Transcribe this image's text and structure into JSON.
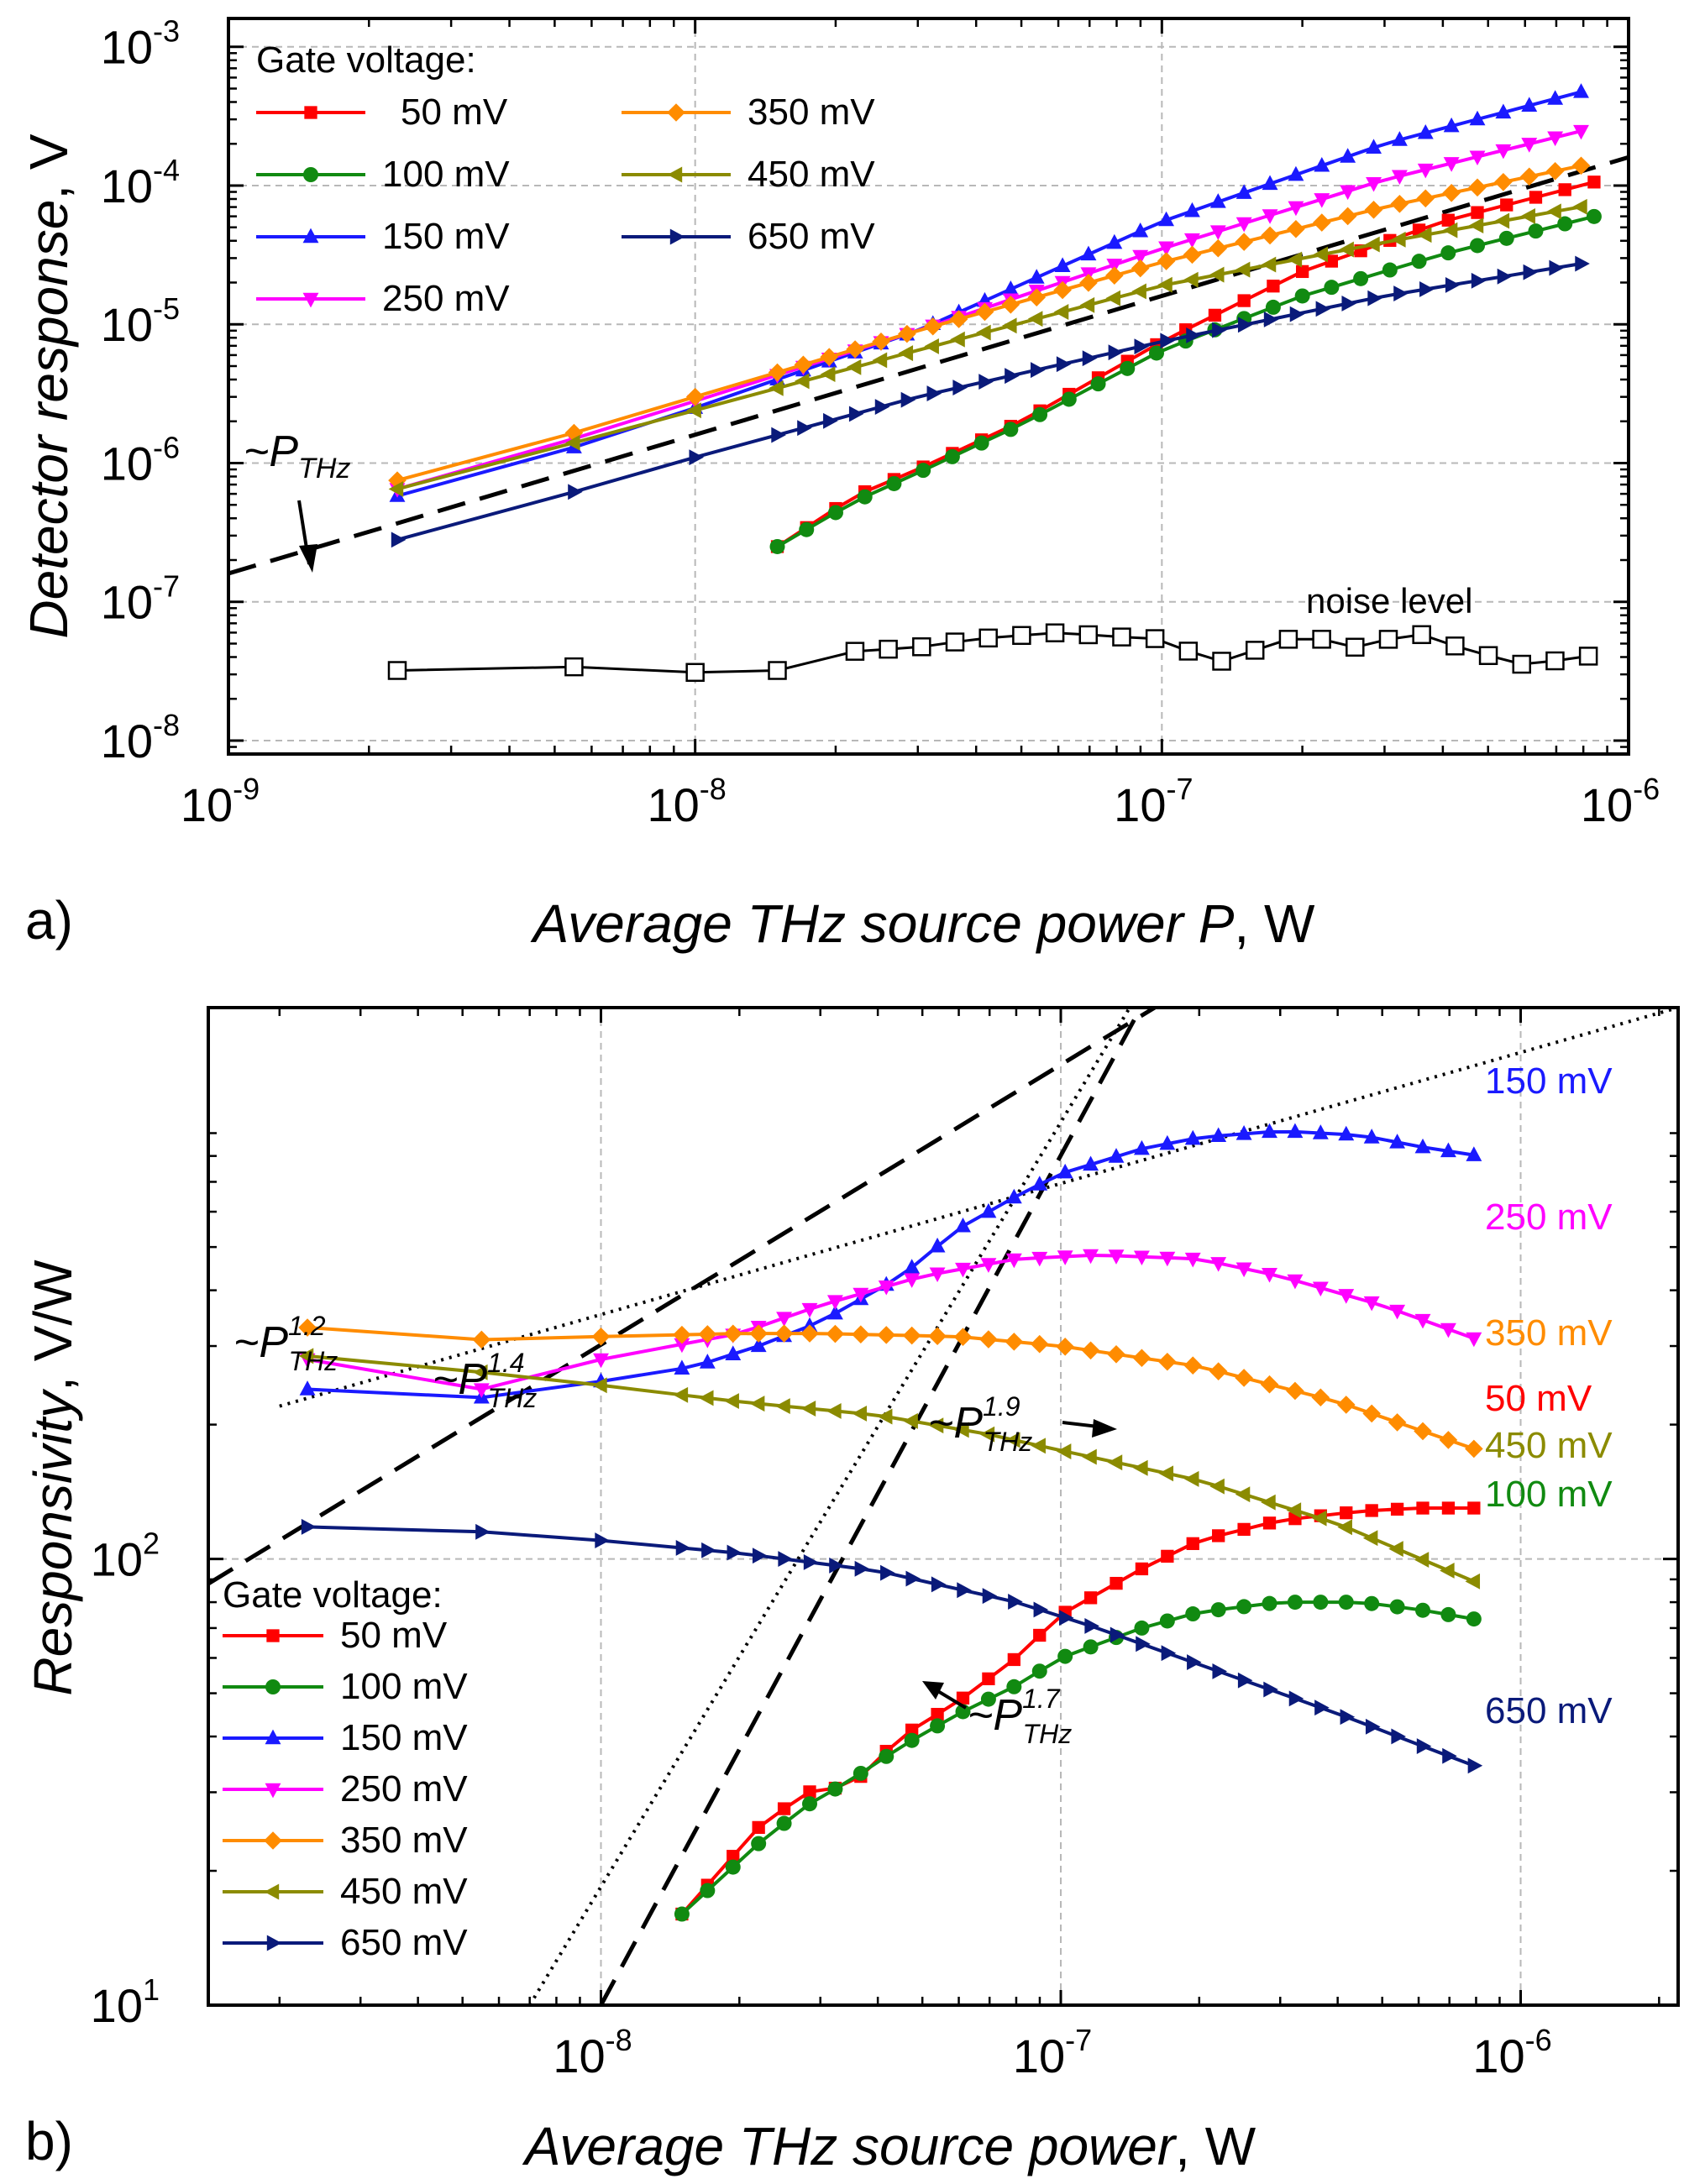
{
  "colors": {
    "50 mV": "#ff0000",
    "100 mV": "#118a11",
    "150 mV": "#1a1aff",
    "250 mV": "#ff00ff",
    "350 mV": "#ff8c00",
    "450 mV": "#8b8b00",
    "650 mV": "#0a1a7a",
    "noise": "#000000"
  },
  "chart_data": [
    {
      "panel_label": "a)",
      "type": "line",
      "xscale": "log",
      "yscale": "log",
      "xlim": [
        1e-09,
        1e-06
      ],
      "ylim": [
        8e-09,
        0.0016
      ],
      "xlabel": "Average THz source power P",
      "xunit": ", W",
      "ylabel": "Detector response",
      "yunit": ", V",
      "x_ticks": [
        {
          "base": "10",
          "exp": "-9",
          "value": 1e-09
        },
        {
          "base": "10",
          "exp": "-8",
          "value": 1e-08
        },
        {
          "base": "10",
          "exp": "-7",
          "value": 1e-07
        },
        {
          "base": "10",
          "exp": "-6",
          "value": 1e-06
        }
      ],
      "y_ticks": [
        {
          "base": "10",
          "exp": "-8",
          "value": 1e-08
        },
        {
          "base": "10",
          "exp": "-7",
          "value": 1e-07
        },
        {
          "base": "10",
          "exp": "-6",
          "value": 1e-06
        },
        {
          "base": "10",
          "exp": "-5",
          "value": 1e-05
        },
        {
          "base": "10",
          "exp": "-4",
          "value": 0.0001
        },
        {
          "base": "10",
          "exp": "-3",
          "value": 0.001
        }
      ],
      "legend": {
        "title": "Gate voltage:",
        "position": "top-left",
        "columns": 2,
        "entries": [
          "50 mV",
          "100 mV",
          "150 mV",
          "250 mV",
          "350 mV",
          "450 mV",
          "650 mV"
        ]
      },
      "series": [
        {
          "name": "50 mV",
          "marker": "square",
          "x_range": [
            1.5e-08,
            8.8e-07
          ],
          "anchors": [
            [
              1.5e-08,
              2.5e-07
            ],
            [
              2.2e-08,
              5.8e-07
            ],
            [
              3e-08,
              9e-07
            ],
            [
              5e-08,
              2e-06
            ],
            [
              1e-07,
              7.5e-06
            ],
            [
              2e-07,
              2.4e-05
            ],
            [
              4e-07,
              5.5e-05
            ],
            [
              8.8e-07,
              0.00011
            ]
          ]
        },
        {
          "name": "100 mV",
          "marker": "circle",
          "x_range": [
            1.5e-08,
            8.8e-07
          ],
          "anchors": [
            [
              1.5e-08,
              2.5e-07
            ],
            [
              2.2e-08,
              5.3e-07
            ],
            [
              3e-08,
              8.5e-07
            ],
            [
              5e-08,
              1.9e-06
            ],
            [
              1e-07,
              6.5e-06
            ],
            [
              2e-07,
              1.6e-05
            ],
            [
              4e-07,
              3.2e-05
            ],
            [
              8.8e-07,
              6.2e-05
            ]
          ]
        },
        {
          "name": "150 mV",
          "marker": "triangle-up",
          "x_range": [
            2.3e-09,
            8.8e-07
          ],
          "anchors": [
            [
              2.3e-09,
              5.8e-07
            ],
            [
              5.5e-09,
              1.3e-06
            ],
            [
              1e-08,
              2.5e-06
            ],
            [
              3e-08,
              9e-06
            ],
            [
              1e-07,
              5.5e-05
            ],
            [
              3e-07,
              0.0002
            ],
            [
              8.8e-07,
              0.00052
            ]
          ]
        },
        {
          "name": "250 mV",
          "marker": "triangle-down",
          "x_range": [
            2.3e-09,
            8.8e-07
          ],
          "anchors": [
            [
              2.3e-09,
              6.5e-07
            ],
            [
              5.5e-09,
              1.5e-06
            ],
            [
              1e-08,
              2.8e-06
            ],
            [
              3e-08,
              9e-06
            ],
            [
              1e-07,
              3.5e-05
            ],
            [
              3e-07,
              0.00011
            ],
            [
              8.8e-07,
              0.00027
            ]
          ]
        },
        {
          "name": "350 mV",
          "marker": "diamond",
          "x_range": [
            2.3e-09,
            8.8e-07
          ],
          "anchors": [
            [
              2.3e-09,
              7.5e-07
            ],
            [
              5.5e-09,
              1.65e-06
            ],
            [
              1e-08,
              3e-06
            ],
            [
              3e-08,
              9e-06
            ],
            [
              1e-07,
              2.8e-05
            ],
            [
              3e-07,
              7e-05
            ],
            [
              8.8e-07,
              0.00015
            ]
          ]
        },
        {
          "name": "450 mV",
          "marker": "triangle-left",
          "x_range": [
            2.3e-09,
            8.8e-07
          ],
          "anchors": [
            [
              2.3e-09,
              6.5e-07
            ],
            [
              5.5e-09,
              1.4e-06
            ],
            [
              1e-08,
              2.4e-06
            ],
            [
              3e-08,
              6.5e-06
            ],
            [
              1e-07,
              1.9e-05
            ],
            [
              3e-07,
              3.9e-05
            ],
            [
              8.8e-07,
              7.5e-05
            ]
          ]
        },
        {
          "name": "650 mV",
          "marker": "triangle-right",
          "x_range": [
            2.3e-09,
            8.8e-07
          ],
          "anchors": [
            [
              2.3e-09,
              2.8e-07
            ],
            [
              5.5e-09,
              6.2e-07
            ],
            [
              1e-08,
              1.1e-06
            ],
            [
              3e-08,
              3e-06
            ],
            [
              1e-07,
              7.5e-06
            ],
            [
              3e-07,
              1.6e-05
            ],
            [
              8.8e-07,
              2.9e-05
            ]
          ]
        },
        {
          "name": "noise",
          "marker": "open-square",
          "x_range": [
            2.3e-09,
            8.8e-07
          ],
          "anchors": [
            [
              2.3e-09,
              3.2e-08
            ],
            [
              5.5e-09,
              3.4e-08
            ],
            [
              1e-08,
              3.1e-08
            ],
            [
              1.5e-08,
              3.2e-08
            ],
            [
              2.2e-08,
              4.4e-08
            ],
            [
              3e-08,
              4.7e-08
            ],
            [
              4e-08,
              5.4e-08
            ],
            [
              6e-08,
              6e-08
            ],
            [
              8e-08,
              5.6e-08
            ],
            [
              1e-07,
              5.4e-08
            ],
            [
              1.3e-07,
              3.6e-08
            ],
            [
              2e-07,
              5.8e-08
            ],
            [
              2.6e-07,
              4.7e-08
            ],
            [
              3.5e-07,
              6e-08
            ],
            [
              4.5e-07,
              4.5e-08
            ],
            [
              6e-07,
              3.5e-08
            ],
            [
              8.8e-07,
              4.2e-08
            ]
          ]
        }
      ],
      "reference_lines": [
        {
          "label": "~P",
          "sub": "THz",
          "sup": "",
          "style": "dashed",
          "points": [
            [
              1e-09,
              1.6e-07
            ],
            [
              1e-06,
              0.00016
            ]
          ]
        }
      ],
      "annotations": [
        {
          "text": "noise level",
          "at": [
            3e-07,
            1.2e-07
          ]
        }
      ]
    },
    {
      "panel_label": "b)",
      "type": "line",
      "xscale": "log",
      "yscale": "log",
      "xlim": [
        1.4e-09,
        2.2e-06
      ],
      "ylim": [
        10,
        1720
      ],
      "xlabel": "Average THz source power",
      "xunit": ", W",
      "ylabel": "Responsivity",
      "yunit": ", V/W",
      "x_ticks": [
        {
          "base": "10",
          "exp": "-8",
          "value": 1e-08
        },
        {
          "base": "10",
          "exp": "-7",
          "value": 1e-07
        },
        {
          "base": "10",
          "exp": "-6",
          "value": 1e-06
        }
      ],
      "y_ticks": [
        {
          "base": "10",
          "exp": "1",
          "value": 10
        },
        {
          "base": "10",
          "exp": "2",
          "value": 100
        }
      ],
      "legend": {
        "title": "Gate voltage:",
        "position": "bottom-left",
        "columns": 1,
        "entries": [
          "50 mV",
          "100 mV",
          "150 mV",
          "250 mV",
          "350 mV",
          "450 mV",
          "650 mV"
        ]
      },
      "series": [
        {
          "name": "50 mV",
          "marker": "square",
          "x_range": [
            1.5e-08,
            8.8e-07
          ],
          "anchors": [
            [
              1.5e-08,
              16
            ],
            [
              2.2e-08,
              25
            ],
            [
              2.8e-08,
              30
            ],
            [
              3.5e-08,
              31
            ],
            [
              4.5e-08,
              40
            ],
            [
              6e-08,
              48
            ],
            [
              8e-08,
              60
            ],
            [
              1e-07,
              75
            ],
            [
              1.5e-07,
              95
            ],
            [
              2e-07,
              110
            ],
            [
              3e-07,
              122
            ],
            [
              4.5e-07,
              128
            ],
            [
              6e-07,
              130
            ],
            [
              8.8e-07,
              130
            ]
          ]
        },
        {
          "name": "100 mV",
          "marker": "circle",
          "x_range": [
            1.5e-08,
            8.8e-07
          ],
          "anchors": [
            [
              1.5e-08,
              16
            ],
            [
              2.2e-08,
              23
            ],
            [
              2.8e-08,
              28
            ],
            [
              3.5e-08,
              32
            ],
            [
              4.5e-08,
              38
            ],
            [
              6e-08,
              45
            ],
            [
              8e-08,
              52
            ],
            [
              1e-07,
              60
            ],
            [
              1.5e-07,
              70
            ],
            [
              2e-07,
              76
            ],
            [
              3e-07,
              80
            ],
            [
              4.5e-07,
              80
            ],
            [
              6e-07,
              77
            ],
            [
              8.8e-07,
              72
            ]
          ]
        },
        {
          "name": "150 mV",
          "marker": "triangle-up",
          "x_range": [
            2.3e-09,
            8.8e-07
          ],
          "anchors": [
            [
              2.3e-09,
              240
            ],
            [
              5.5e-09,
              230
            ],
            [
              1e-08,
              250
            ],
            [
              1.6e-08,
              270
            ],
            [
              2.2e-08,
              300
            ],
            [
              3e-08,
              340
            ],
            [
              4.5e-08,
              430
            ],
            [
              6e-08,
              550
            ],
            [
              8e-08,
              650
            ],
            [
              1e-07,
              730
            ],
            [
              1.5e-07,
              830
            ],
            [
              2e-07,
              880
            ],
            [
              3e-07,
              910
            ],
            [
              4.5e-07,
              890
            ],
            [
              6e-07,
              840
            ],
            [
              8.8e-07,
              790
            ]
          ]
        },
        {
          "name": "250 mV",
          "marker": "triangle-down",
          "x_range": [
            2.3e-09,
            8.8e-07
          ],
          "anchors": [
            [
              2.3e-09,
              280
            ],
            [
              5.5e-09,
              240
            ],
            [
              1e-08,
              280
            ],
            [
              2e-08,
              320
            ],
            [
              3e-08,
              370
            ],
            [
              5e-08,
              430
            ],
            [
              8e-08,
              470
            ],
            [
              1.2e-07,
              480
            ],
            [
              2e-07,
              470
            ],
            [
              3e-07,
              430
            ],
            [
              5e-07,
              370
            ],
            [
              8.8e-07,
              300
            ]
          ]
        },
        {
          "name": "350 mV",
          "marker": "diamond",
          "x_range": [
            2.3e-09,
            8.8e-07
          ],
          "anchors": [
            [
              2.3e-09,
              330
            ],
            [
              5.5e-09,
              310
            ],
            [
              1e-08,
              315
            ],
            [
              2e-08,
              320
            ],
            [
              3e-08,
              320
            ],
            [
              6e-08,
              315
            ],
            [
              1e-07,
              300
            ],
            [
              2e-07,
              270
            ],
            [
              4e-07,
              225
            ],
            [
              8.8e-07,
              170
            ]
          ]
        },
        {
          "name": "450 mV",
          "marker": "triangle-left",
          "x_range": [
            2.3e-09,
            8.8e-07
          ],
          "anchors": [
            [
              2.3e-09,
              285
            ],
            [
              5.5e-09,
              262
            ],
            [
              1e-08,
              245
            ],
            [
              2e-08,
              225
            ],
            [
              4e-08,
              210
            ],
            [
              7e-08,
              190
            ],
            [
              1e-07,
              175
            ],
            [
              2e-07,
              150
            ],
            [
              4e-07,
              120
            ],
            [
              8.8e-07,
              85
            ]
          ]
        },
        {
          "name": "650 mV",
          "marker": "triangle-right",
          "x_range": [
            2.3e-09,
            8.8e-07
          ],
          "anchors": [
            [
              2.3e-09,
              118
            ],
            [
              5.5e-09,
              115
            ],
            [
              1e-08,
              110
            ],
            [
              2e-08,
              103
            ],
            [
              4e-08,
              94
            ],
            [
              8e-08,
              80
            ],
            [
              1.2e-07,
              70
            ],
            [
              2e-07,
              58
            ],
            [
              4e-07,
              45
            ],
            [
              8.8e-07,
              33
            ]
          ]
        }
      ],
      "end_labels": [
        "150 mV",
        "250 mV",
        "350 mV",
        "50 mV",
        "450 mV",
        "100 mV",
        "650 mV"
      ],
      "reference_lines": [
        {
          "label": "~P",
          "sub": "THz",
          "sup": "1.2",
          "style": "dotted",
          "points": [
            [
              2e-09,
              220
            ],
            [
              2.2e-06,
              1720
            ]
          ]
        },
        {
          "label": "~P",
          "sub": "THz",
          "sup": "1.4",
          "style": "dashed",
          "points": [
            [
              1.4e-09,
              88
            ],
            [
              1.6e-07,
              1720
            ]
          ]
        },
        {
          "label": "~P",
          "sub": "THz",
          "sup": "1.9",
          "style": "dashed",
          "points": [
            [
              1e-08,
              10
            ],
            [
              2.2e-07,
              3600
            ]
          ]
        },
        {
          "label": "~P",
          "sub": "THz",
          "sup": "1.7",
          "style": "dotted",
          "points": [
            [
              7e-09,
              10
            ],
            [
              2.2e-06,
              190000
            ]
          ]
        }
      ]
    }
  ]
}
